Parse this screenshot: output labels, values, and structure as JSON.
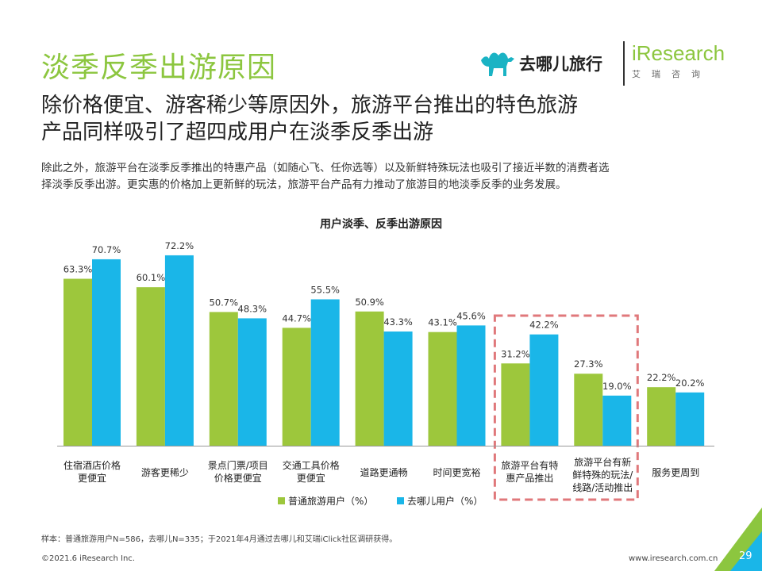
{
  "header": {
    "title": "淡季反季出游原因",
    "subtitle_line1": "除价格便宜、游客稀少等原因外，旅游平台推出的特色旅游",
    "subtitle_line2": "产品同样吸引了超四成用户在淡季反季出游",
    "desc_line1": "除此之外，旅游平台在淡季反季推出的特惠产品（如随心飞、任你选等）以及新鲜特殊玩法也吸引了接近半数的消费者选",
    "desc_line2": "择淡季反季出游。更实惠的价格加上更新鲜的玩法，旅游平台产品有力推动了旅游目的地淡季反季的业务发展。"
  },
  "logos": {
    "qunar_text": "去哪儿旅行",
    "iresearch_text": "iResearch",
    "iresearch_cn": "艾瑞咨询"
  },
  "chart_data": {
    "type": "bar",
    "title": "用户淡季、反季出游原因",
    "categories": [
      [
        "住宿酒店价格",
        "更便宜"
      ],
      [
        "游客更稀少"
      ],
      [
        "景点门票/项目",
        "价格更便宜"
      ],
      [
        "交通工具价格",
        "更便宜"
      ],
      [
        "道路更通畅"
      ],
      [
        "时间更宽裕"
      ],
      [
        "旅游平台有特",
        "惠产品推出"
      ],
      [
        "旅游平台有新",
        "鲜特殊的玩法/",
        "线路/活动推出"
      ],
      [
        "服务更周到"
      ]
    ],
    "series": [
      {
        "name": "普通旅游用户（%）",
        "color": "#9dc73c",
        "values": [
          63.3,
          60.1,
          50.7,
          44.7,
          50.9,
          43.1,
          31.2,
          27.3,
          22.2
        ]
      },
      {
        "name": "去哪儿用户（%）",
        "color": "#1ab6e8",
        "values": [
          70.7,
          72.2,
          48.3,
          55.5,
          43.3,
          45.6,
          42.2,
          19.0,
          20.2
        ]
      }
    ],
    "ylim": [
      0,
      80
    ],
    "grid": false,
    "highlight_categories": [
      6,
      7
    ],
    "highlight_color": "#e0787b",
    "legend_position": "bottom"
  },
  "footer": {
    "note": "样本：普通旅游用户N=586，去哪儿N=335；于2021年4月通过去哪儿和艾瑞iClick社区调研获得。",
    "copyright": "©2021.6 iResearch Inc.",
    "website": "www.iresearch.com.cn",
    "page": "29"
  }
}
